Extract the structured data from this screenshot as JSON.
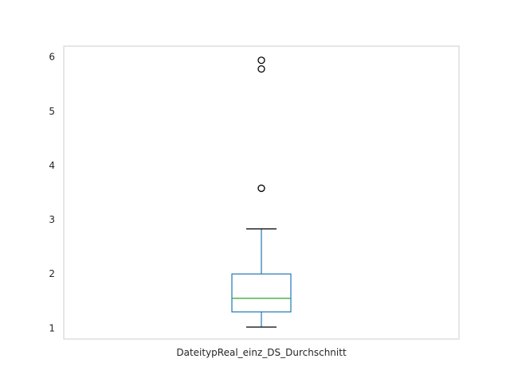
{
  "chart_data": {
    "type": "box",
    "categories": [
      "DateitypReal_einz_DS_Durchschnitt"
    ],
    "boxes": [
      {
        "category": "DateitypReal_einz_DS_Durchschnitt",
        "whisker_low": 1.02,
        "q1": 1.3,
        "median": 1.55,
        "q3": 2.0,
        "whisker_high": 2.83,
        "outliers": [
          3.58,
          5.78,
          5.94
        ]
      }
    ],
    "yticks": [
      "1",
      "2",
      "3",
      "4",
      "5",
      "6"
    ],
    "ylim": [
      0.8,
      6.2
    ],
    "xlabel": "",
    "ylabel": "",
    "title": "",
    "grid": false,
    "colors": {
      "box": "#1f77b4",
      "median": "#2ca02c",
      "whisker_cap": "#000000",
      "outlier": "#000000",
      "frame": "#cccccc"
    }
  }
}
